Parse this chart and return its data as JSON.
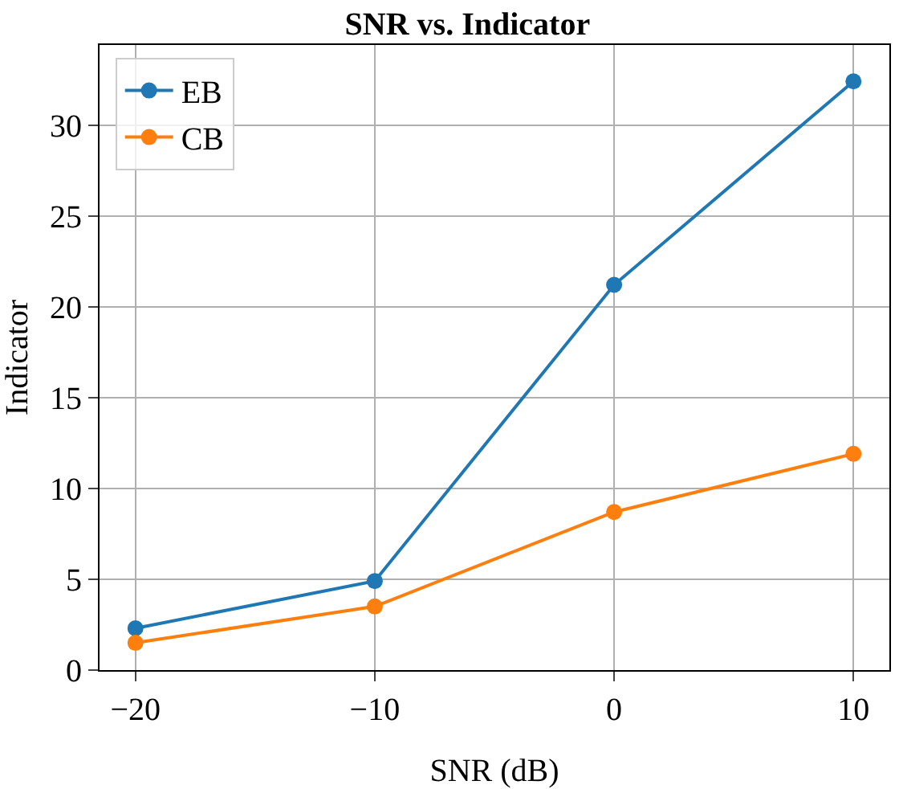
{
  "chart_data": {
    "type": "line",
    "title": "SNR vs. Indicator",
    "xlabel": "SNR (dB)",
    "ylabel": "Indicator",
    "x": [
      -20,
      -10,
      0,
      10
    ],
    "series": [
      {
        "name": "EB",
        "color": "#1f77b4",
        "values": [
          2.3,
          4.9,
          21.2,
          32.4
        ]
      },
      {
        "name": "CB",
        "color": "#ff7f0e",
        "values": [
          1.5,
          3.5,
          8.7,
          11.9
        ]
      }
    ],
    "xlim": [
      -21.5,
      11.5
    ],
    "xticks": [
      {
        "value": -20,
        "label": "−20"
      },
      {
        "value": -10,
        "label": "−10"
      },
      0,
      10
    ],
    "ylim": [
      0,
      34.4
    ],
    "yticks": [
      0,
      5,
      10,
      15,
      20,
      25,
      30
    ],
    "grid": true,
    "legend": "top left",
    "marker": "circle",
    "line_style": "solid"
  }
}
